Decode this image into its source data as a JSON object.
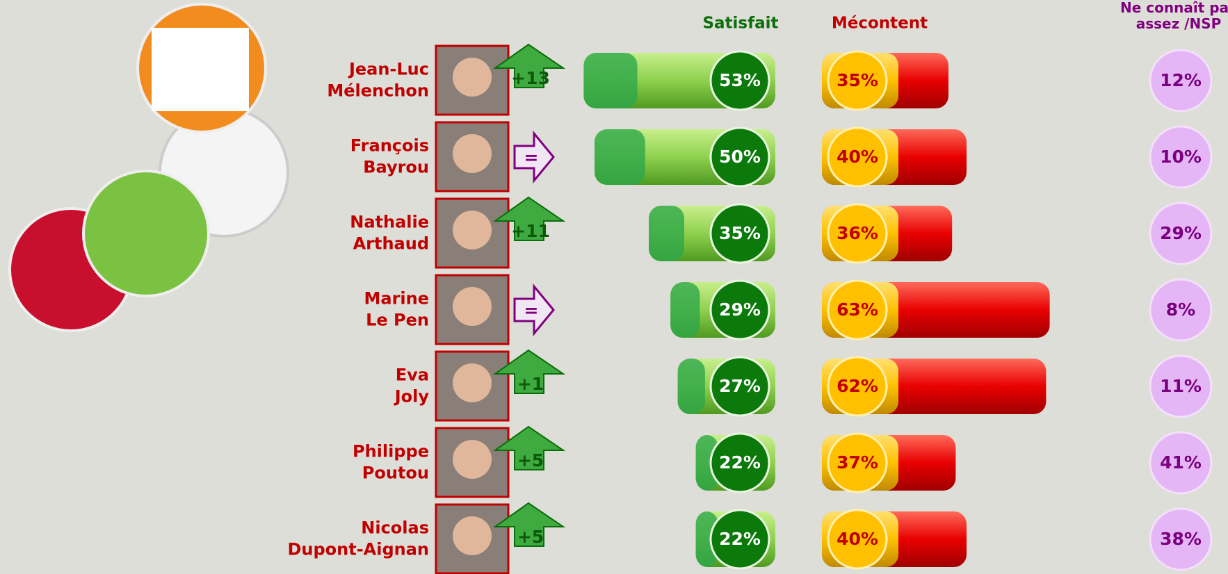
{
  "chart_data": {
    "type": "bar",
    "categories": [
      [
        "Jean-Luc",
        "Mélenchon"
      ],
      [
        "François",
        "Bayrou"
      ],
      [
        "Nathalie",
        "Arthaud"
      ],
      [
        "Marine",
        "Le Pen"
      ],
      [
        "Eva",
        "Joly"
      ],
      [
        "Philippe",
        "Poutou"
      ],
      [
        "Nicolas",
        "Dupont-Aignan"
      ]
    ],
    "changes": [
      "+13",
      "=",
      "+11",
      "=",
      "+1",
      "+5",
      "+5"
    ],
    "series": [
      {
        "name": "Satisfait",
        "color": "#0b7a0b",
        "values": [
          53,
          50,
          35,
          29,
          27,
          22,
          22
        ],
        "value_labels": [
          "53%",
          "50%",
          "35%",
          "29%",
          "27%",
          "22%",
          "22%"
        ]
      },
      {
        "name": "Mécontent",
        "color": "#c00000",
        "values": [
          35,
          40,
          36,
          63,
          62,
          37,
          40
        ],
        "value_labels": [
          "35%",
          "40%",
          "36%",
          "63%",
          "62%",
          "37%",
          "40%"
        ]
      },
      {
        "name": "Ne connaît pas assez /NSP",
        "color": "#800080",
        "values": [
          12,
          10,
          29,
          8,
          11,
          41,
          38
        ],
        "value_labels": [
          "12%",
          "10%",
          "29%",
          "8%",
          "11%",
          "41%",
          "38%"
        ]
      }
    ]
  }
}
